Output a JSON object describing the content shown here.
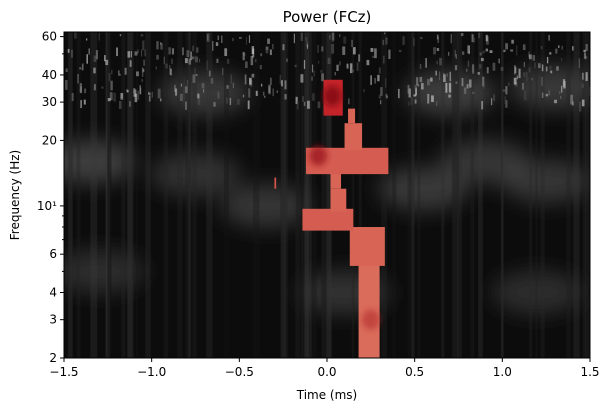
{
  "chart_data": {
    "type": "heatmap",
    "title": "Power (FCz)",
    "xlabel": "Time (ms)",
    "ylabel": "Frequency (Hz)",
    "xlim": [
      -1.5,
      1.5
    ],
    "ylim": [
      2,
      63
    ],
    "y_scale": "log",
    "x_ticks": [
      -1.5,
      -1.0,
      -0.5,
      0.0,
      0.5,
      1.0,
      1.5
    ],
    "x_tick_labels": [
      "−1.5",
      "−1.0",
      "−0.5",
      "0.0",
      "0.5",
      "1.0",
      "1.5"
    ],
    "y_ticks": [
      2,
      3,
      4,
      6,
      10,
      20,
      30,
      40,
      60
    ],
    "y_tick_labels": [
      "2",
      "3",
      "4",
      "6",
      "10¹",
      "20",
      "30",
      "40",
      "60"
    ],
    "background_colormap": "grayscale",
    "significant_cluster_colormap": "red",
    "significant_cluster": [
      {
        "t": [
          0.18,
          0.3
        ],
        "f": [
          2,
          6.5
        ],
        "level": 0.45
      },
      {
        "t": [
          0.13,
          0.33
        ],
        "f": [
          5.3,
          8.0
        ],
        "level": 0.5
      },
      {
        "t": [
          -0.14,
          0.15
        ],
        "f": [
          7.7,
          9.7
        ],
        "level": 0.55
      },
      {
        "t": [
          0.02,
          0.11
        ],
        "f": [
          9.4,
          12.0
        ],
        "level": 0.5
      },
      {
        "t": [
          0.02,
          0.08
        ],
        "f": [
          12.0,
          14.5
        ],
        "level": 0.5
      },
      {
        "t": [
          -0.12,
          0.35
        ],
        "f": [
          14.0,
          18.5
        ],
        "level": 0.55
      },
      {
        "t": [
          0.1,
          0.2
        ],
        "f": [
          18.0,
          24.0
        ],
        "level": 0.5
      },
      {
        "t": [
          0.12,
          0.16
        ],
        "f": [
          24.0,
          28.0
        ],
        "level": 0.5
      },
      {
        "t": [
          -0.02,
          0.09
        ],
        "f": [
          26.0,
          38.0
        ],
        "level": 0.9
      },
      {
        "t": [
          -0.3,
          -0.29
        ],
        "f": [
          12.0,
          13.5
        ],
        "level": 0.6
      }
    ],
    "hot_spots": [
      {
        "t": 0.03,
        "f": 32,
        "intensity": 1.0
      },
      {
        "t": -0.05,
        "f": 17,
        "intensity": 0.7
      },
      {
        "t": 0.25,
        "f": 3.0,
        "intensity": 0.35
      }
    ],
    "background_blobs": [
      {
        "t": -1.35,
        "f": 16,
        "intensity": 0.45
      },
      {
        "t": -0.75,
        "f": 14,
        "intensity": 0.3
      },
      {
        "t": -0.35,
        "f": 10,
        "intensity": 0.35
      },
      {
        "t": 0.55,
        "f": 12,
        "intensity": 0.4
      },
      {
        "t": 0.9,
        "f": 16,
        "intensity": 0.35
      },
      {
        "t": 1.25,
        "f": 13,
        "intensity": 0.35
      },
      {
        "t": -0.7,
        "f": 33,
        "intensity": 0.4
      },
      {
        "t": 0.7,
        "f": 33,
        "intensity": 0.45
      },
      {
        "t": 1.3,
        "f": 35,
        "intensity": 0.4
      },
      {
        "t": -1.3,
        "f": 5,
        "intensity": 0.25
      },
      {
        "t": 0.1,
        "f": 4,
        "intensity": 0.3
      },
      {
        "t": 1.2,
        "f": 4,
        "intensity": 0.25
      }
    ]
  }
}
